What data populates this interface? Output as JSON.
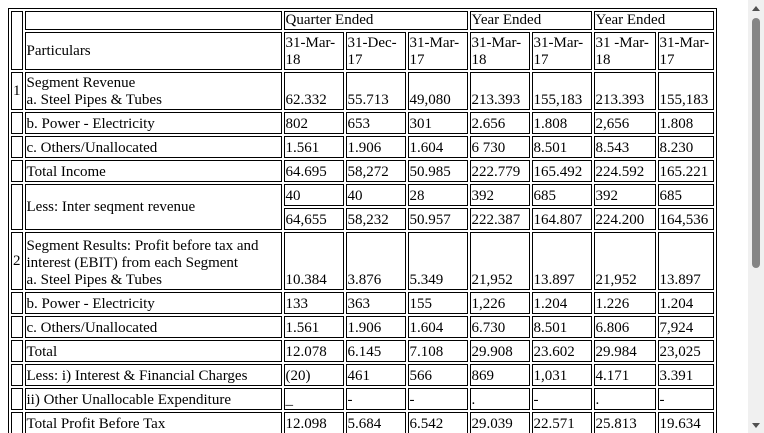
{
  "header": {
    "particulars": "Particulars",
    "groups": {
      "quarter": "Quarter Ended",
      "year1": "Year Ended",
      "year2": "Year Ended"
    },
    "dates": [
      "31-Mar-\n18",
      "31-Dec-\n17",
      "31-Mar-\n17",
      "31-Mar-\n18",
      "31-Mar-\n17",
      "31 -Mar-\n18",
      "31-Mar-\n17"
    ]
  },
  "rows": [
    {
      "num": "1",
      "label": "Segment Revenue\na. Steel Pipes & Tubes",
      "values": [
        "62.332",
        "55.713",
        "49,080",
        "213.393",
        "155,183",
        "213.393",
        "155,183"
      ]
    },
    {
      "num": "",
      "label": "b. Power - Electricity",
      "values": [
        "802",
        "653",
        "301",
        "2.656",
        "1.808",
        "2,656",
        "1.808"
      ]
    },
    {
      "num": "",
      "label": "c. Others/Unallocated",
      "values": [
        "1.561",
        "1.906",
        "1.604",
        "6 730",
        "8.501",
        "8.543",
        "8.230"
      ]
    },
    {
      "num": "",
      "label": "Total Income",
      "values": [
        "64.695",
        "58,272",
        "50.985",
        "222.779",
        "165.492",
        "224.592",
        "165.221"
      ]
    },
    {
      "num": "",
      "label": "Less: Inter seqment revenue",
      "values": [
        "40",
        "40",
        "28",
        "392",
        "685",
        "392",
        "685"
      ],
      "values2": [
        "64,655",
        "58,232",
        "50.957",
        "222.387",
        "164.807",
        "224.200",
        "164,536"
      ]
    },
    {
      "num": "2",
      "label": "Segment Results: Profit before tax and interest (EBIT) from each Segment\na. Steel Pipes & Tubes",
      "values": [
        "10.384",
        "3.876",
        "5.349",
        "21,952",
        "13.897",
        "21,952",
        "13.897"
      ]
    },
    {
      "num": "",
      "label": "b. Power - Electricity",
      "values": [
        "133",
        "363",
        "155",
        "1,226",
        "1.204",
        "1.226",
        "1.204"
      ]
    },
    {
      "num": "",
      "label": "c. Others/Unallocated",
      "values": [
        "1.561",
        "1.906",
        "1.604",
        "6.730",
        "8.501",
        "6.806",
        "7,924"
      ]
    },
    {
      "num": "",
      "label": "Total",
      "values": [
        "12.078",
        "6.145",
        "7.108",
        "29.908",
        "23.602",
        "29.984",
        "23,025"
      ]
    },
    {
      "num": "",
      "label": "Less: i) Interest & Financial Charges",
      "values": [
        "(20)",
        "461",
        "566",
        "869",
        "1,031",
        "4.171",
        "3.391"
      ]
    },
    {
      "num": "",
      "label": "ii) Other Unallocable Expenditure",
      "values": [
        "_",
        "-",
        "-",
        ".",
        "-",
        ".",
        "-"
      ]
    },
    {
      "num": "",
      "label": "Total Profit Before Tax",
      "values": [
        "12.098",
        "5.684",
        "6.542",
        "29.039",
        "22.571",
        "25.813",
        "19.634"
      ]
    }
  ],
  "scrollbar": {
    "up_icon": "chevron-up-icon",
    "down_icon": "chevron-down-icon"
  }
}
